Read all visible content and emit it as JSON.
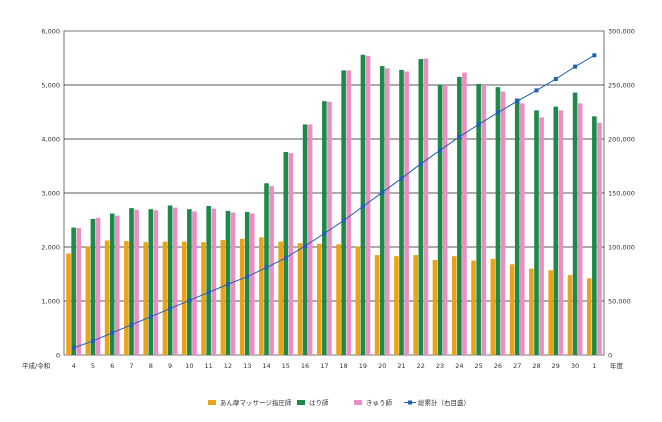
{
  "chart_data": {
    "type": "bar",
    "x_corner_label": "平成/令和",
    "x_unit_label": "年度",
    "categories": [
      "4",
      "5",
      "6",
      "7",
      "8",
      "9",
      "10",
      "11",
      "12",
      "13",
      "14",
      "15",
      "16",
      "17",
      "18",
      "19",
      "20",
      "21",
      "22",
      "23",
      "24",
      "25",
      "26",
      "27",
      "28",
      "29",
      "30",
      "1"
    ],
    "ylim_left": [
      0,
      6000
    ],
    "yticks_left": [
      "0",
      "1,000",
      "2,000",
      "3,000",
      "4,000",
      "5,000",
      "6,000"
    ],
    "ylim_right": [
      0,
      300000
    ],
    "yticks_right": [
      "0",
      "50,000",
      "100,000",
      "150,000",
      "200,000",
      "250,000",
      "300,000"
    ],
    "grid": true,
    "legend_position": "bottom",
    "series": [
      {
        "name": "あん摩マッサージ指圧師",
        "kind": "bar",
        "axis": "left",
        "color": "#e8a317",
        "values": [
          1880,
          2010,
          2120,
          2110,
          2090,
          2100,
          2100,
          2090,
          2130,
          2150,
          2180,
          2100,
          2070,
          2060,
          2050,
          2010,
          1850,
          1830,
          1850,
          1760,
          1830,
          1750,
          1780,
          1680,
          1600,
          1570,
          1480,
          1420
        ]
      },
      {
        "name": "はり師",
        "kind": "bar",
        "axis": "left",
        "color": "#1e8a4a",
        "values": [
          2360,
          2520,
          2620,
          2720,
          2700,
          2770,
          2700,
          2760,
          2670,
          2650,
          3180,
          3760,
          4270,
          4700,
          5270,
          5560,
          5350,
          5280,
          5480,
          5010,
          5150,
          5020,
          4960,
          4750,
          4530,
          4600,
          4860,
          4420
        ]
      },
      {
        "name": "きゅう師",
        "kind": "bar",
        "axis": "left",
        "color": "#ea8ec4",
        "values": [
          2350,
          2540,
          2580,
          2690,
          2680,
          2730,
          2660,
          2710,
          2640,
          2620,
          3130,
          3740,
          4270,
          4690,
          5270,
          5540,
          5310,
          5250,
          5490,
          5000,
          5230,
          5000,
          4880,
          4660,
          4400,
          4530,
          4660,
          4300
        ]
      },
      {
        "name": "総累計（右目盛）",
        "kind": "line",
        "axis": "right",
        "color": "#1f5fb4",
        "values": [
          6500,
          13000,
          20500,
          28000,
          35500,
          43000,
          50500,
          58000,
          65500,
          72500,
          81000,
          90000,
          101000,
          112500,
          124500,
          137500,
          150500,
          163500,
          177000,
          189500,
          202000,
          213500,
          224500,
          235000,
          245000,
          255500,
          267000,
          277500
        ]
      }
    ]
  }
}
